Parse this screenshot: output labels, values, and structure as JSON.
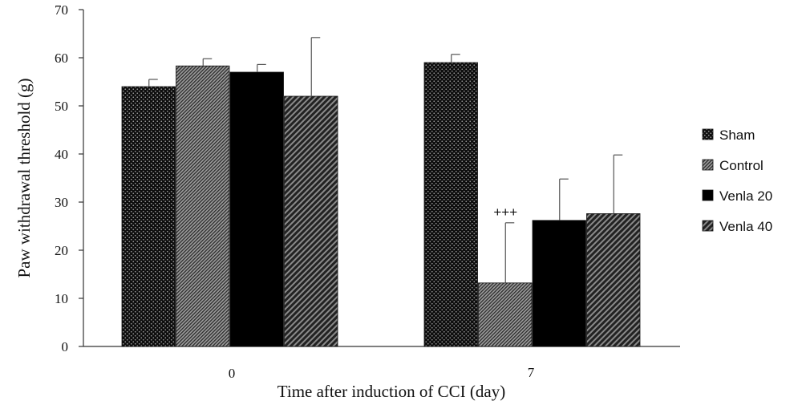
{
  "chart_data": {
    "type": "bar",
    "title": "",
    "xlabel": "Time after induction of CCI (day)",
    "ylabel": "Paw withdrawal threshold (g)",
    "ylim": [
      0,
      70
    ],
    "yticks": [
      0,
      10,
      20,
      30,
      40,
      50,
      60,
      70
    ],
    "categories": [
      "0",
      "7"
    ],
    "series": [
      {
        "name": "Sham",
        "values": [
          54,
          59
        ],
        "errors": [
          1.5,
          1.7
        ],
        "color": "#1a1a1a",
        "pattern": "dots"
      },
      {
        "name": "Control",
        "values": [
          58.3,
          13.2
        ],
        "errors": [
          1.5,
          12.5
        ],
        "color": "#3a3a3a",
        "pattern": "fine-diagonal"
      },
      {
        "name": "Venla 20",
        "values": [
          57,
          26.2
        ],
        "errors": [
          1.6,
          8.6
        ],
        "color": "#000000",
        "pattern": "solid"
      },
      {
        "name": "Venla 40",
        "values": [
          52,
          27.6
        ],
        "errors": [
          12.2,
          12.2
        ],
        "color": "#2e2e2e",
        "pattern": "diagonal"
      }
    ],
    "annotations": [
      {
        "text": "+++",
        "category": "7",
        "series": "Control"
      }
    ],
    "legend_position": "right",
    "grid": false
  }
}
